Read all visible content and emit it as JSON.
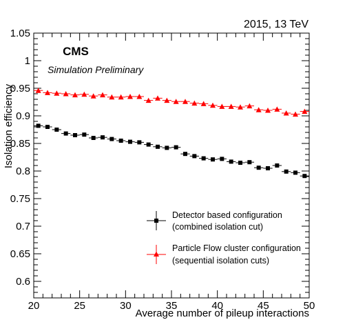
{
  "header": {
    "right_label": "2015, 13 TeV",
    "experiment": "CMS",
    "subtitle": "Simulation Preliminary"
  },
  "legend": {
    "entries": [
      {
        "line1": "Detector based configuration",
        "line2": "(combined isolation cut)",
        "color": "#000000",
        "marker": "square"
      },
      {
        "line1": "Particle Flow cluster configuration",
        "line2": "(sequential isolation cuts)",
        "color": "#ff0000",
        "marker": "triangle"
      }
    ]
  },
  "chart_data": {
    "type": "scatter",
    "title": "",
    "xlabel": "Average number of pileup interactions",
    "ylabel": "Isolation efficiency",
    "xlim": [
      20,
      50
    ],
    "ylim": [
      0.57,
      1.05
    ],
    "xticks": [
      20,
      25,
      30,
      35,
      40,
      45,
      50
    ],
    "xtick_labels": [
      "20",
      "25",
      "30",
      "35",
      "40",
      "45",
      "50"
    ],
    "yticks": [
      0.6,
      0.65,
      0.7,
      0.75,
      0.8,
      0.85,
      0.9,
      0.95,
      1.0,
      1.05
    ],
    "ytick_labels": [
      "0.6",
      "0.65",
      "0.7",
      "0.75",
      "0.8",
      "0.85",
      "0.9",
      "0.95",
      "1",
      "1.05"
    ],
    "grid": false,
    "legend_position": "lower-right",
    "x_half_bin": 0.5,
    "series": [
      {
        "name": "Detector based configuration (combined isolation cut)",
        "color": "#000000",
        "marker": "square",
        "x": [
          20.5,
          21.5,
          22.5,
          23.5,
          24.5,
          25.5,
          26.5,
          27.5,
          28.5,
          29.5,
          30.5,
          31.5,
          32.5,
          33.5,
          34.5,
          35.5,
          36.5,
          37.5,
          38.5,
          39.5,
          40.5,
          41.5,
          42.5,
          43.5,
          44.5,
          45.5,
          46.5,
          47.5,
          48.5,
          49.5
        ],
        "y": [
          0.882,
          0.88,
          0.875,
          0.868,
          0.865,
          0.866,
          0.86,
          0.861,
          0.858,
          0.855,
          0.853,
          0.852,
          0.848,
          0.844,
          0.842,
          0.843,
          0.831,
          0.827,
          0.823,
          0.821,
          0.822,
          0.817,
          0.815,
          0.816,
          0.806,
          0.805,
          0.81,
          0.799,
          0.797,
          0.791
        ]
      },
      {
        "name": "Particle Flow cluster configuration (sequential isolation cuts)",
        "color": "#ff0000",
        "marker": "triangle",
        "x": [
          20.5,
          21.5,
          22.5,
          23.5,
          24.5,
          25.5,
          26.5,
          27.5,
          28.5,
          29.5,
          30.5,
          31.5,
          32.5,
          33.5,
          34.5,
          35.5,
          36.5,
          37.5,
          38.5,
          39.5,
          40.5,
          41.5,
          42.5,
          43.5,
          44.5,
          45.5,
          46.5,
          47.5,
          48.5,
          49.5
        ],
        "y": [
          0.946,
          0.942,
          0.941,
          0.94,
          0.938,
          0.939,
          0.936,
          0.938,
          0.934,
          0.934,
          0.935,
          0.935,
          0.928,
          0.932,
          0.928,
          0.926,
          0.926,
          0.923,
          0.922,
          0.919,
          0.917,
          0.917,
          0.916,
          0.918,
          0.911,
          0.91,
          0.912,
          0.905,
          0.903,
          0.908
        ]
      }
    ]
  }
}
